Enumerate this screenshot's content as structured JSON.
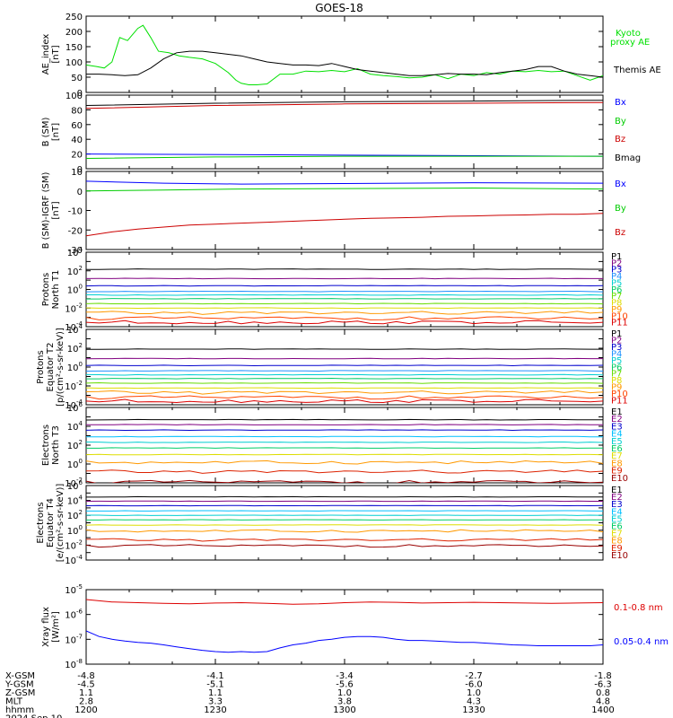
{
  "title": "GOES-18",
  "colors": {
    "kyoto": "#00e000",
    "themis": "#000000",
    "bx": "#0000ff",
    "by": "#00cc00",
    "bz": "#cc0000",
    "bmag": "#000000",
    "xray_long": "#dd0000",
    "xray_short": "#0000ff",
    "ch11": [
      "#000000",
      "#800080",
      "#0000cd",
      "#1e90ff",
      "#00ced1",
      "#00cc66",
      "#66dd00",
      "#dddd00",
      "#ff9900",
      "#ff4400",
      "#dd0000",
      "#990000"
    ],
    "ch10": [
      "#000000",
      "#800080",
      "#0000cd",
      "#00bfff",
      "#00ced1",
      "#00cc66",
      "#dddd00",
      "#ff9900",
      "#dd2200",
      "#990000"
    ]
  },
  "chart_data": [
    {
      "type": "line",
      "id": "ae",
      "ylabel": "AE_index [nT]",
      "yscale": "linear",
      "ylim": [
        0,
        250
      ],
      "yticks": [
        0,
        50,
        100,
        150,
        200,
        250
      ],
      "xlim": [
        1200,
        1400
      ],
      "series": [
        {
          "name": "Kyoto proxy AE",
          "color_key": "kyoto",
          "x": [
            1200,
            1204,
            1207,
            1210,
            1213,
            1216,
            1218,
            1220,
            1222,
            1225,
            1228,
            1232,
            1236,
            1240,
            1245,
            1250,
            1255,
            1258,
            1260,
            1263,
            1266,
            1270,
            1275,
            1280,
            1285,
            1290,
            1295,
            1300,
            1305,
            1310,
            1315,
            1320,
            1325,
            1330,
            1335,
            1340,
            1345,
            1350,
            1355,
            1360,
            1365,
            1370,
            1375,
            1380,
            1385,
            1390,
            1395,
            1400
          ],
          "y": [
            90,
            85,
            80,
            100,
            180,
            170,
            190,
            210,
            220,
            180,
            135,
            130,
            120,
            115,
            110,
            95,
            65,
            40,
            30,
            25,
            25,
            28,
            60,
            60,
            70,
            68,
            72,
            68,
            78,
            60,
            55,
            52,
            48,
            50,
            58,
            45,
            60,
            55,
            65,
            60,
            70,
            68,
            72,
            68,
            70,
            55,
            40,
            55
          ]
        },
        {
          "name": "Themis AE",
          "color_key": "themis",
          "x": [
            1200,
            1205,
            1210,
            1215,
            1220,
            1225,
            1230,
            1235,
            1240,
            1245,
            1250,
            1255,
            1260,
            1265,
            1270,
            1275,
            1280,
            1285,
            1290,
            1295,
            1300,
            1305,
            1310,
            1315,
            1320,
            1325,
            1330,
            1335,
            1340,
            1345,
            1350,
            1355,
            1360,
            1365,
            1370,
            1375,
            1380,
            1385,
            1390,
            1395,
            1400
          ],
          "y": [
            60,
            60,
            58,
            55,
            58,
            80,
            110,
            130,
            135,
            135,
            130,
            125,
            120,
            110,
            100,
            95,
            90,
            90,
            88,
            95,
            85,
            75,
            70,
            65,
            60,
            55,
            55,
            58,
            62,
            60,
            60,
            58,
            65,
            70,
            75,
            85,
            85,
            70,
            60,
            55,
            50
          ]
        }
      ]
    },
    {
      "type": "line",
      "id": "bsm",
      "ylabel": "B (SM) [nT]",
      "yscale": "linear",
      "ylim": [
        0,
        100
      ],
      "yticks": [
        0,
        20,
        40,
        60,
        80,
        100
      ],
      "xlim": [
        1200,
        1400
      ],
      "series": [
        {
          "name": "Bx",
          "color_key": "bx",
          "x": [
            1200,
            1400
          ],
          "y": [
            20,
            17
          ]
        },
        {
          "name": "By",
          "color_key": "by",
          "x": [
            1200,
            1250,
            1300,
            1400
          ],
          "y": [
            14,
            16,
            17,
            17
          ]
        },
        {
          "name": "Bz",
          "color_key": "bz",
          "x": [
            1200,
            1250,
            1300,
            1350,
            1400
          ],
          "y": [
            82,
            86,
            88,
            89,
            90
          ]
        },
        {
          "name": "Bmag",
          "color_key": "bmag",
          "x": [
            1200,
            1250,
            1300,
            1350,
            1400
          ],
          "y": [
            86,
            89,
            91,
            92,
            93
          ]
        }
      ]
    },
    {
      "type": "line",
      "id": "bigrf",
      "ylabel": "B (SM)-IGRF (SM) [nT]",
      "yscale": "linear",
      "ylim": [
        -30,
        10
      ],
      "yticks": [
        -30,
        -20,
        -10,
        0,
        10
      ],
      "xlim": [
        1200,
        1400
      ],
      "series": [
        {
          "name": "Bx",
          "color_key": "bx",
          "x": [
            1200,
            1230,
            1260,
            1300,
            1350,
            1400
          ],
          "y": [
            5,
            4,
            3.5,
            3.8,
            4.2,
            4
          ]
        },
        {
          "name": "By",
          "color_key": "by",
          "x": [
            1200,
            1230,
            1260,
            1300,
            1350,
            1400
          ],
          "y": [
            0,
            0.5,
            1,
            1.2,
            1.5,
            1
          ]
        },
        {
          "name": "Bz",
          "color_key": "bz",
          "x": [
            1200,
            1210,
            1220,
            1230,
            1240,
            1250,
            1260,
            1270,
            1280,
            1290,
            1300,
            1310,
            1320,
            1330,
            1340,
            1350,
            1360,
            1370,
            1380,
            1390,
            1400
          ],
          "y": [
            -23,
            -21,
            -19.5,
            -18.5,
            -17.5,
            -17,
            -16.5,
            -16,
            -15.5,
            -15,
            -14.5,
            -14,
            -13.8,
            -13.5,
            -13,
            -12.8,
            -12.5,
            -12.3,
            -12,
            -12,
            -11.5
          ]
        }
      ]
    },
    {
      "type": "line",
      "id": "pn",
      "ylabel": "Protons North T1",
      "yscale": "log",
      "ylim": [
        0.0001,
        10000
      ],
      "ytick_exps": [
        -4,
        -2,
        0,
        2,
        4
      ],
      "xlim": [
        1200,
        1400
      ],
      "color_key": "ch11",
      "channels": [
        "P1",
        "P2",
        "P3",
        "P4",
        "P5",
        "P6",
        "P7",
        "P8",
        "P9",
        "P10",
        "P11"
      ],
      "levels": [
        150,
        15,
        2.5,
        0.6,
        0.25,
        0.1,
        0.03,
        0.01,
        0.003,
        0.0008,
        0.0003
      ]
    },
    {
      "type": "line",
      "id": "pe",
      "ylabel": "Protons Equator T2 [p/(cm²-s-sr-keV)]",
      "yscale": "log",
      "ylim": [
        0.0001,
        10000
      ],
      "ytick_exps": [
        -4,
        -2,
        0,
        2,
        4
      ],
      "xlim": [
        1200,
        1400
      ],
      "color_key": "ch11",
      "channels": [
        "P1",
        "P2",
        "P3",
        "P4",
        "P5",
        "P6",
        "P7",
        "P8",
        "P9",
        "P10",
        "P11"
      ],
      "levels": [
        80,
        8,
        1.5,
        0.4,
        0.15,
        0.06,
        0.02,
        0.006,
        0.002,
        0.0006,
        0.00025
      ]
    },
    {
      "type": "line",
      "id": "en",
      "ylabel": "Electrons North T3",
      "yscale": "log",
      "ylim": [
        0.01,
        1000000
      ],
      "ytick_exps": [
        -2,
        0,
        2,
        4,
        6
      ],
      "xlim": [
        1200,
        1400
      ],
      "color_key": "ch10",
      "channels": [
        "E1",
        "E2",
        "E3",
        "E4",
        "E5",
        "E6",
        "E7",
        "E8",
        "E9",
        "E10"
      ],
      "levels": [
        50000,
        15000,
        4000,
        800,
        200,
        50,
        10,
        1.5,
        0.15,
        0.012
      ]
    },
    {
      "type": "line",
      "id": "ee",
      "ylabel": "Electrons Equator T4 [e/(cm²-s-sr-keV)]",
      "yscale": "log",
      "ylim": [
        0.0001,
        1000000
      ],
      "ytick_exps": [
        -4,
        -2,
        0,
        2,
        4,
        6
      ],
      "xlim": [
        1200,
        1400
      ],
      "color_key": "ch10",
      "channels": [
        "E1",
        "E2",
        "E3",
        "E4",
        "E5",
        "E6",
        "E7",
        "E8",
        "E9",
        "E10"
      ],
      "levels": [
        30000,
        8000,
        2000,
        400,
        100,
        25,
        5,
        0.8,
        0.05,
        0.008
      ]
    },
    {
      "type": "line",
      "id": "xray",
      "ylabel": "Xray flux [W/m²]",
      "yscale": "log",
      "ylim": [
        1e-08,
        1e-05
      ],
      "ytick_exps": [
        -8,
        -7,
        -6,
        -5
      ],
      "xlim": [
        1200,
        1400
      ],
      "series": [
        {
          "name": "0.1-0.8 nm",
          "color_key": "xray_long",
          "x": [
            1200,
            1210,
            1220,
            1230,
            1240,
            1250,
            1260,
            1270,
            1280,
            1290,
            1300,
            1310,
            1320,
            1330,
            1340,
            1350,
            1360,
            1370,
            1380,
            1390,
            1400
          ],
          "y": [
            4e-06,
            3.2e-06,
            3e-06,
            2.8e-06,
            2.7e-06,
            2.9e-06,
            3e-06,
            2.8e-06,
            2.6e-06,
            2.7e-06,
            3e-06,
            3.2e-06,
            3.1e-06,
            2.9e-06,
            3e-06,
            3.1e-06,
            3e-06,
            2.9e-06,
            2.8e-06,
            2.9e-06,
            3e-06
          ]
        },
        {
          "name": "0.05-0.4 nm",
          "color_key": "xray_short",
          "x": [
            1200,
            1205,
            1210,
            1215,
            1220,
            1225,
            1230,
            1235,
            1240,
            1245,
            1250,
            1255,
            1260,
            1265,
            1270,
            1275,
            1280,
            1285,
            1290,
            1295,
            1300,
            1305,
            1310,
            1315,
            1320,
            1325,
            1330,
            1335,
            1340,
            1345,
            1350,
            1355,
            1360,
            1365,
            1370,
            1375,
            1380,
            1385,
            1390,
            1395,
            1400
          ],
          "y": [
            2.2e-07,
            1.3e-07,
            1e-07,
            8.5e-08,
            7.5e-08,
            7e-08,
            6e-08,
            5e-08,
            4.2e-08,
            3.6e-08,
            3.2e-08,
            3e-08,
            3.2e-08,
            3e-08,
            3.2e-08,
            4.5e-08,
            6e-08,
            7e-08,
            9e-08,
            1e-07,
            1.2e-07,
            1.3e-07,
            1.3e-07,
            1.2e-07,
            1e-07,
            9e-08,
            9e-08,
            8.5e-08,
            8e-08,
            7.5e-08,
            7.5e-08,
            7e-08,
            6.5e-08,
            6e-08,
            5.8e-08,
            5.5e-08,
            5.5e-08,
            5.5e-08,
            5.5e-08,
            5.5e-08,
            6e-08
          ]
        }
      ]
    }
  ],
  "x_axis": {
    "ticks": [
      1200,
      1230,
      1300,
      1330,
      1400
    ],
    "row_labels": [
      "X-GSM",
      "Y-GSM",
      "Z-GSM",
      "MLT",
      "hhmm"
    ],
    "rows": [
      [
        "-4.8",
        "-4.1",
        "-3.4",
        "-2.7",
        "-1.8"
      ],
      [
        "-4.5",
        "-5.1",
        "-5.6",
        "-6.0",
        "-6.3"
      ],
      [
        "1.1",
        "1.1",
        "1.0",
        "1.0",
        "0.8"
      ],
      [
        "2.8",
        "3.3",
        "3.8",
        "4.3",
        "4.8"
      ],
      [
        "1200",
        "1230",
        "1300",
        "1330",
        "1400"
      ]
    ],
    "date": "2024 Sep 10"
  },
  "legends": {
    "ae": [
      "Kyoto",
      "proxy AE",
      "Themis AE"
    ],
    "bsm": [
      "Bx",
      "By",
      "Bz",
      "Bmag"
    ],
    "bigrf": [
      "Bx",
      "By",
      "Bz"
    ],
    "xray": [
      "0.1-0.8 nm",
      "0.05-0.4 nm"
    ]
  },
  "ylabel_lines": {
    "ae": [
      "AE_index",
      "[nT]"
    ],
    "bsm": [
      "B (SM)",
      "[nT]"
    ],
    "bigrf": [
      "B (SM)-IGRF (SM)",
      "[nT]"
    ],
    "pn": [
      "Protons",
      "North T1"
    ],
    "pe": [
      "Protons",
      "Equator T2",
      "[p/(cm²-s-sr-keV)]"
    ],
    "en": [
      "Electrons",
      "North T3"
    ],
    "ee": [
      "Electrons",
      "Equator T4",
      "[e/(cm²-s-sr-keV)]"
    ],
    "xray": [
      "Xray flux",
      "[W/m²]"
    ]
  }
}
